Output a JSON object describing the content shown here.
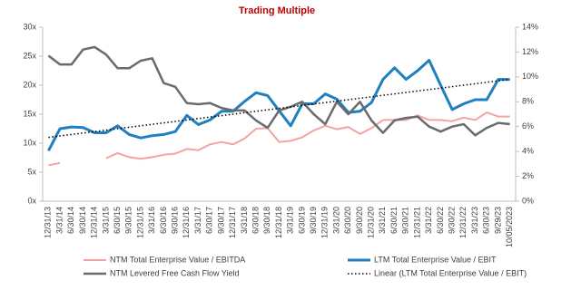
{
  "chart_data": {
    "type": "line",
    "title": "Trading Multiple",
    "categories": [
      "12/31/13",
      "3/31/14",
      "6/30/14",
      "9/30/14",
      "12/31/14",
      "3/31/15",
      "6/30/15",
      "9/30/15",
      "12/31/15",
      "3/31/16",
      "6/30/16",
      "9/30/16",
      "12/31/16",
      "3/31/17",
      "6/30/17",
      "9/30/17",
      "12/31/17",
      "3/31/18",
      "6/30/18",
      "9/30/18",
      "12/31/18",
      "3/31/19",
      "6/30/19",
      "9/30/19",
      "12/31/19",
      "3/31/20",
      "6/30/20",
      "9/30/20",
      "12/31/20",
      "3/31/21",
      "6/30/21",
      "9/30/21",
      "12/31/21",
      "3/31/22",
      "6/30/22",
      "9/30/22",
      "12/31/22",
      "3/31/23",
      "6/30/23",
      "9/29/23",
      "10/05/2023"
    ],
    "ylim": [
      0,
      30
    ],
    "yticks": [
      {
        "value": 0,
        "label": "0x"
      },
      {
        "value": 5,
        "label": "5x"
      },
      {
        "value": 10,
        "label": "10x"
      },
      {
        "value": 15,
        "label": "15x"
      },
      {
        "value": 20,
        "label": "20x"
      },
      {
        "value": 25,
        "label": "25x"
      },
      {
        "value": 30,
        "label": "30x"
      }
    ],
    "y2lim": [
      0,
      14
    ],
    "y2ticks": [
      {
        "value": 0,
        "label": "0%"
      },
      {
        "value": 2,
        "label": "2%"
      },
      {
        "value": 4,
        "label": "4%"
      },
      {
        "value": 6,
        "label": "6%"
      },
      {
        "value": 8,
        "label": "8%"
      },
      {
        "value": 10,
        "label": "10%"
      },
      {
        "value": 12,
        "label": "12%"
      },
      {
        "value": 14,
        "label": "14%"
      }
    ],
    "series": [
      {
        "name": "NTM Total Enterprise Value / EBITDA",
        "color": "#f4a3a3",
        "width": 2,
        "style": "solid",
        "values": [
          6.2,
          6.6,
          null,
          null,
          null,
          7.4,
          8.3,
          7.6,
          7.3,
          7.6,
          8.0,
          8.2,
          9.0,
          8.8,
          9.8,
          10.2,
          9.8,
          10.8,
          12.5,
          12.6,
          10.2,
          10.4,
          11.0,
          12.2,
          13.0,
          12.4,
          12.8,
          11.6,
          12.6,
          14.0,
          14.0,
          14.0,
          14.8,
          14.0,
          14.0,
          13.8,
          14.4,
          14.0,
          15.3,
          14.6,
          14.6
        ]
      },
      {
        "name": "LTM Total Enterprise Value / EBIT",
        "color": "#1f80c0",
        "width": 3,
        "style": "solid",
        "values": [
          8.7,
          12.5,
          12.8,
          12.7,
          11.8,
          11.8,
          13.0,
          11.5,
          10.9,
          11.3,
          11.5,
          12.0,
          14.8,
          13.2,
          14.0,
          15.5,
          15.5,
          17.2,
          18.7,
          18.2,
          15.6,
          13.0,
          16.8,
          16.8,
          18.5,
          17.6,
          15.3,
          15.5,
          17.0,
          21.0,
          23.0,
          21.0,
          22.5,
          24.3,
          20.0,
          15.8,
          16.8,
          17.5,
          17.5,
          21.0,
          21.0
        ]
      },
      {
        "name": "NTM Levered Free Cash Flow Yield",
        "color": "#6b6b6b",
        "width": 2.5,
        "style": "solid",
        "axis": "y2",
        "values": [
          11.7,
          11.0,
          11.0,
          12.2,
          12.4,
          11.8,
          10.7,
          10.7,
          11.3,
          11.5,
          9.5,
          9.2,
          7.9,
          7.8,
          7.9,
          7.5,
          7.3,
          7.3,
          6.5,
          5.9,
          7.3,
          7.6,
          8.0,
          7.0,
          6.2,
          8.0,
          7.0,
          8.0,
          6.5,
          5.5,
          6.5,
          6.7,
          6.8,
          6.0,
          5.6,
          6.0,
          6.2,
          5.3,
          5.9,
          6.3,
          6.2
        ]
      },
      {
        "name": "Linear (LTM Total Enterprise Value / EBIT)",
        "color": "#000000",
        "width": 1.5,
        "style": "dotted",
        "values": [
          11.0,
          11.25,
          11.5,
          11.75,
          12.0,
          12.25,
          12.5,
          12.75,
          13.0,
          13.25,
          13.5,
          13.75,
          14.0,
          14.25,
          14.5,
          14.75,
          15.0,
          15.25,
          15.5,
          15.75,
          16.0,
          16.25,
          16.5,
          16.75,
          17.0,
          17.25,
          17.5,
          17.75,
          18.0,
          18.25,
          18.5,
          18.75,
          19.0,
          19.25,
          19.5,
          19.75,
          20.0,
          20.25,
          20.5,
          20.75,
          21.0
        ]
      }
    ]
  }
}
